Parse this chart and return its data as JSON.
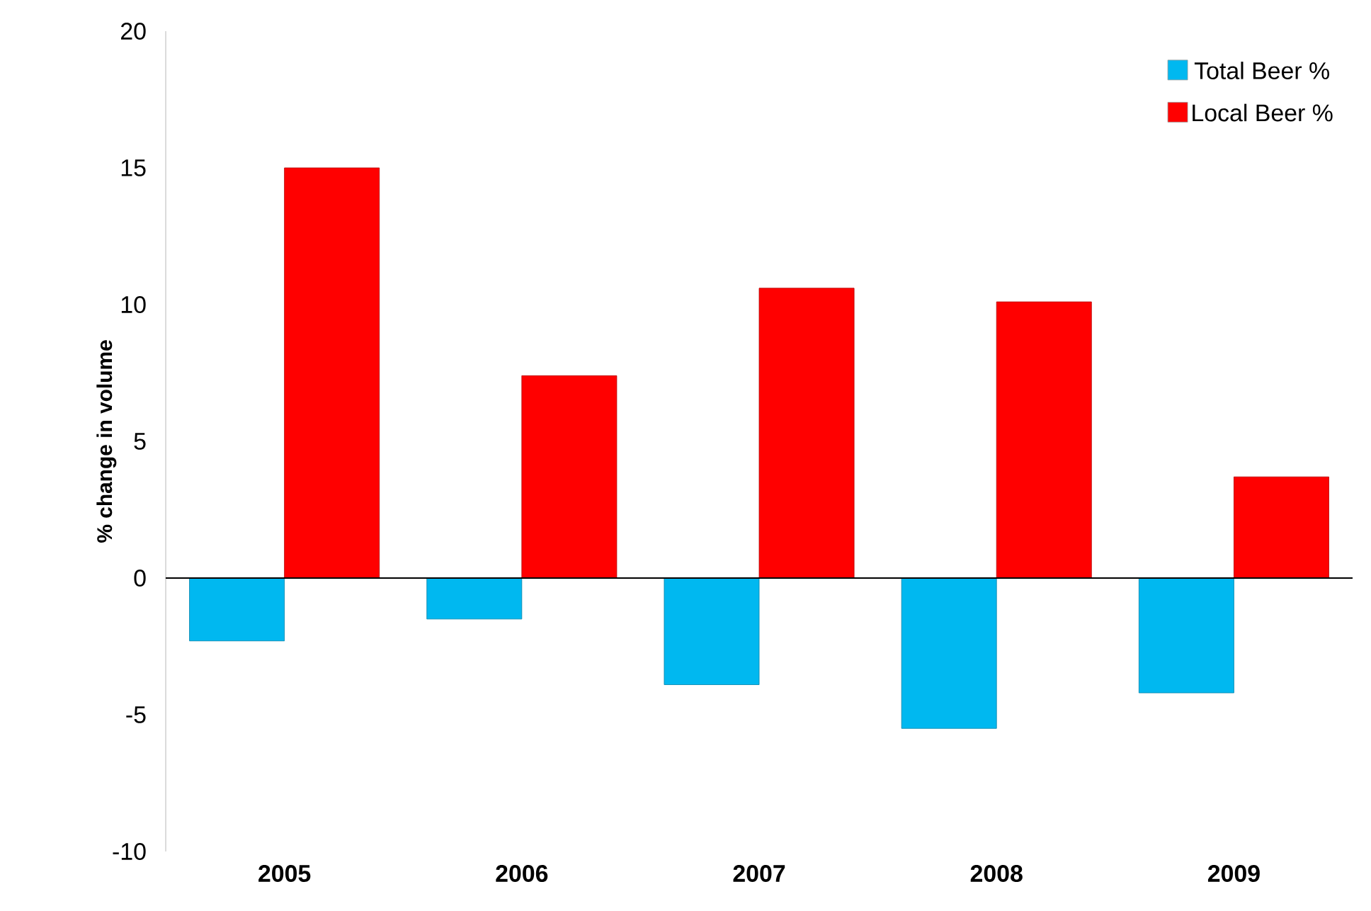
{
  "chart_data": {
    "type": "bar",
    "ylabel": "% change in volume",
    "categories": [
      "2005",
      "2006",
      "2007",
      "2008",
      "2009"
    ],
    "series": [
      {
        "name": "Total Beer %",
        "color": "#00b8f0",
        "values": [
          -2.3,
          -1.5,
          -3.9,
          -5.5,
          -4.2
        ]
      },
      {
        "name": "Local Beer %",
        "color": "#ff0000",
        "values": [
          15.0,
          7.4,
          10.6,
          10.1,
          3.7
        ]
      }
    ],
    "ylim": [
      -10,
      20
    ],
    "yticks": [
      -10,
      -5,
      0,
      5,
      10,
      15,
      20
    ],
    "ref_lines": [
      {
        "axis": "y",
        "value": 0,
        "color": "#000000"
      }
    ],
    "legend": "top right"
  }
}
